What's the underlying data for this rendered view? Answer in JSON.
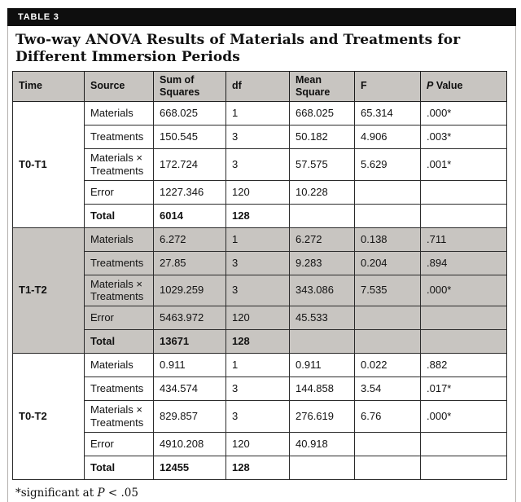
{
  "table_label": "TABLE 3",
  "title": "Two-way ANOVA Results of Materials and Treatments for Different Immersion Periods",
  "columns": [
    {
      "text": "Time"
    },
    {
      "text": "Source"
    },
    {
      "text": "Sum of Squares"
    },
    {
      "text": "df"
    },
    {
      "text": "Mean Square"
    },
    {
      "text": "F"
    },
    {
      "italic": "P",
      "text": " Value"
    }
  ],
  "groups": [
    {
      "time": "T0-T1",
      "shaded": false,
      "rows": [
        {
          "source": "Materials",
          "sum_of_squares": "668.025",
          "df": "1",
          "mean_square": "668.025",
          "f": "65.314",
          "p": ".000*"
        },
        {
          "source": "Treatments",
          "sum_of_squares": "150.545",
          "df": "3",
          "mean_square": "50.182",
          "f": "4.906",
          "p": ".003*"
        },
        {
          "source": "Materials × Treatments",
          "sum_of_squares": "172.724",
          "df": "3",
          "mean_square": "57.575",
          "f": "5.629",
          "p": ".001*"
        },
        {
          "source": "Error",
          "sum_of_squares": "1227.346",
          "df": "120",
          "mean_square": "10.228",
          "f": "",
          "p": ""
        },
        {
          "source": "Total",
          "sum_of_squares": "6014",
          "df": "128",
          "mean_square": "",
          "f": "",
          "p": "",
          "bold": true
        }
      ]
    },
    {
      "time": "T1-T2",
      "shaded": true,
      "rows": [
        {
          "source": "Materials",
          "sum_of_squares": "6.272",
          "df": "1",
          "mean_square": "6.272",
          "f": "0.138",
          "p": ".711"
        },
        {
          "source": "Treatments",
          "sum_of_squares": "27.85",
          "df": "3",
          "mean_square": "9.283",
          "f": "0.204",
          "p": ".894"
        },
        {
          "source": "Materials × Treatments",
          "sum_of_squares": "1029.259",
          "df": "3",
          "mean_square": "343.086",
          "f": "7.535",
          "p": ".000*"
        },
        {
          "source": "Error",
          "sum_of_squares": "5463.972",
          "df": "120",
          "mean_square": "45.533",
          "f": "",
          "p": ""
        },
        {
          "source": "Total",
          "sum_of_squares": "13671",
          "df": "128",
          "mean_square": "",
          "f": "",
          "p": "",
          "bold": true
        }
      ]
    },
    {
      "time": "T0-T2",
      "shaded": false,
      "rows": [
        {
          "source": "Materials",
          "sum_of_squares": "0.911",
          "df": "1",
          "mean_square": "0.911",
          "f": "0.022",
          "p": ".882"
        },
        {
          "source": "Treatments",
          "sum_of_squares": "434.574",
          "df": "3",
          "mean_square": "144.858",
          "f": "3.54",
          "p": ".017*"
        },
        {
          "source": "Materials × Treatments",
          "sum_of_squares": "829.857",
          "df": "3",
          "mean_square": "276.619",
          "f": "6.76",
          "p": ".000*"
        },
        {
          "source": "Error",
          "sum_of_squares": "4910.208",
          "df": "120",
          "mean_square": "40.918",
          "f": "",
          "p": ""
        },
        {
          "source": "Total",
          "sum_of_squares": "12455",
          "df": "128",
          "mean_square": "",
          "f": "",
          "p": "",
          "bold": true
        }
      ]
    }
  ],
  "footnote": {
    "prefix": "*significant at ",
    "italic": "P",
    "suffix": " < .05"
  },
  "colors": {
    "header_bg": "#c8c5c1",
    "shaded_bg": "#c8c5c1",
    "bar_bg": "#0e0e0e"
  }
}
